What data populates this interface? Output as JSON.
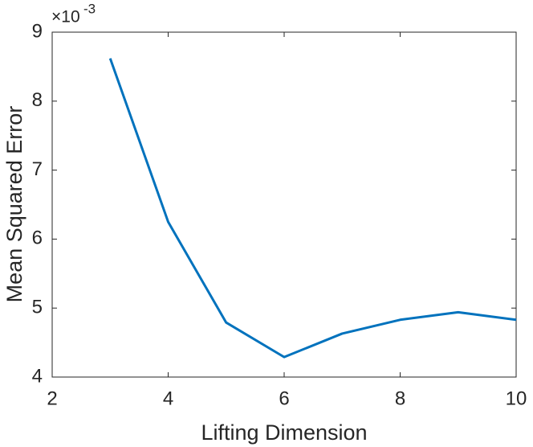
{
  "chart_data": {
    "type": "line",
    "x_label": "Lifting Dimension",
    "y_label": "Mean Squared Error",
    "y_multiplier_base": "×10",
    "y_multiplier_exponent": "-3",
    "x": [
      3,
      4,
      5,
      6,
      7,
      8,
      9,
      10
    ],
    "series": [
      {
        "color": "#0072bd",
        "values": [
          8.62,
          6.25,
          4.79,
          4.29,
          4.63,
          4.83,
          4.94,
          4.83
        ]
      }
    ],
    "xlim": [
      2,
      10
    ],
    "xticks": [
      2,
      4,
      6,
      8,
      10
    ],
    "ylim": [
      4,
      9
    ],
    "yticks": [
      4,
      5,
      6,
      7,
      8,
      9
    ],
    "grid": false
  }
}
